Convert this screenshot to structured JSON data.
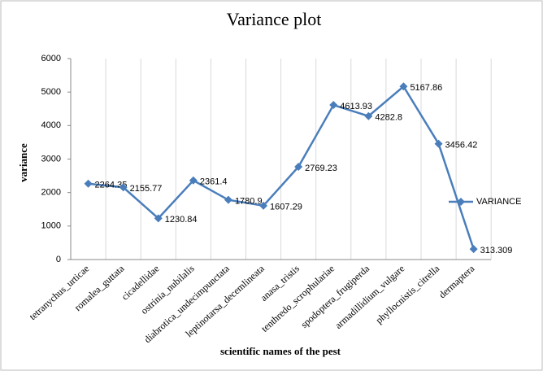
{
  "chart_data": {
    "type": "line",
    "title": "Variance plot",
    "x_label": "scientific names of the pest",
    "y_label": "variance",
    "categories": [
      "tetranychus_urticae",
      "romalea_guttata",
      "cicadellidae",
      "ostrinia_nubilalis",
      "diabrotica_undecimpunctata",
      "leptinotarsa_decemlineata",
      "anasa_tristis",
      "tenthredo_scrophulariae",
      "spodoptera_frugiperda",
      "armadillidium_vulgare",
      "phyllocnistis_citrella",
      "dermaptera"
    ],
    "series": [
      {
        "name": "VARIANCE",
        "color": "#4a7ebb",
        "values": [
          2264.35,
          2155.77,
          1230.84,
          2361.4,
          1780.9,
          1607.29,
          2769.23,
          4613.93,
          4282.8,
          5167.86,
          3456.42,
          313.309
        ]
      }
    ],
    "ylim": [
      0,
      6000
    ],
    "yticks": [
      0,
      1000,
      2000,
      3000,
      4000,
      5000,
      6000
    ],
    "grid": true,
    "legend": "right"
  }
}
